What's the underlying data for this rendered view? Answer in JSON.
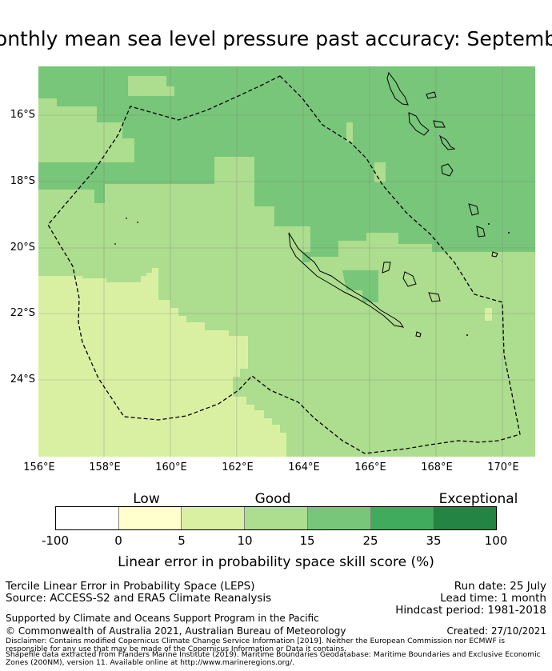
{
  "title": "onthly mean sea level pressure past accuracy: Septemb",
  "map": {
    "lat_labels": [
      "16°S",
      "18°S",
      "20°S",
      "22°S",
      "24°S"
    ],
    "lon_labels": [
      "156°E",
      "158°E",
      "160°E",
      "162°E",
      "164°E",
      "166°E",
      "168°E",
      "170°E"
    ]
  },
  "colorbar": {
    "categories": [
      "Low",
      "Good",
      "Exceptional"
    ],
    "ticks": [
      "-100",
      "0",
      "5",
      "10",
      "15",
      "25",
      "35",
      "100"
    ],
    "colors": [
      "#ffffff",
      "#ffffcc",
      "#d9f0a3",
      "#addd8e",
      "#78c679",
      "#41ab5d",
      "#238443"
    ],
    "label": "Linear error in probability space skill score (%)"
  },
  "info": {
    "line1": "Tercile Linear Error in Probability Space (LEPS)",
    "line2": "Source: ACCESS-S2 and ERA5 Climate Reanalysis",
    "run_date": "Run date: 25 July",
    "lead_time": "Lead time: 1 month",
    "hindcast": "Hindcast period: 1981-2018",
    "supported": "Supported by Climate and Oceans Support Program in the Pacific",
    "copyright": "© Commonwealth of Australia 2021, Australian Bureau of Meteorology",
    "created": "Created: 27/10/2021",
    "disclaimer1": "Disclaimer: Contains modified Copernicus Climate Change Service Information [2019]. Neither the European Commission nor ECMWF is",
    "disclaimer2": "responsible for any use that may be made of the Copernicus Information or Data it contains.",
    "shapefile1": "Shapefile data extracted from Flanders Marine Institute (2019). Maritime Boundaries Geodatabase: Maritime Boundaries and Exclusive Economic",
    "shapefile2": "Zones (200NM), version 11. Available online at http://www.marineregions.org/."
  }
}
